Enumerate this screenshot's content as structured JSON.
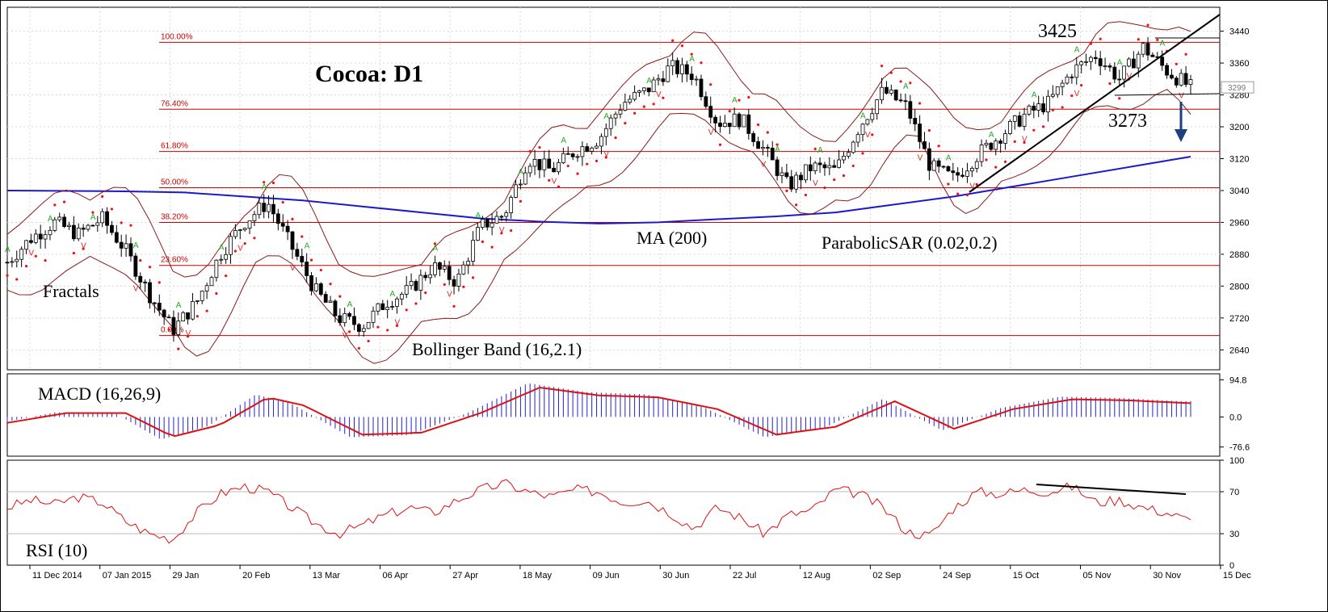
{
  "chart_data": {
    "type": "candlestick",
    "title": "Cocoa: D1",
    "panels": {
      "price": {
        "ylim": [
          2590,
          3500
        ],
        "y_ticks": [
          "3440",
          "3360",
          "3280",
          "3200",
          "3120",
          "3040",
          "2960",
          "2880",
          "2800",
          "2720",
          "2640"
        ],
        "current_price": "3299",
        "fibonacci_levels": [
          {
            "label": "100.00%",
            "value": 3412
          },
          {
            "label": "76.40%",
            "value": 3244
          },
          {
            "label": "61.80%",
            "value": 3138
          },
          {
            "label": "50.00%",
            "value": 3047
          },
          {
            "label": "38.20%",
            "value": 2960
          },
          {
            "label": "23.60%",
            "value": 2852
          },
          {
            "label": "0.00%",
            "value": 2676
          }
        ],
        "annotations": {
          "high_label": "3425",
          "low_label": "3273",
          "ma": "MA (200)",
          "sar": "ParabolicSAR (0.02,0.2)",
          "bollinger": "Bollinger Band (16,2.1)",
          "fractals": "Fractals"
        },
        "ma200": [
          [
            0,
            3040
          ],
          [
            0.1,
            3038
          ],
          [
            0.15,
            3035
          ],
          [
            0.2,
            3025
          ],
          [
            0.25,
            3015
          ],
          [
            0.3,
            3000
          ],
          [
            0.35,
            2985
          ],
          [
            0.4,
            2970
          ],
          [
            0.45,
            2962
          ],
          [
            0.5,
            2957
          ],
          [
            0.55,
            2960
          ],
          [
            0.6,
            2968
          ],
          [
            0.65,
            2975
          ],
          [
            0.7,
            2985
          ],
          [
            0.75,
            3005
          ],
          [
            0.8,
            3025
          ],
          [
            0.85,
            3050
          ],
          [
            0.9,
            3075
          ],
          [
            0.95,
            3100
          ],
          [
            1.0,
            3125
          ]
        ]
      },
      "macd": {
        "label": "MACD (16,26,9)",
        "y_ticks": [
          "94.8",
          "0.0",
          "-76.6"
        ],
        "ylim": [
          -100,
          110
        ]
      },
      "rsi": {
        "label": "RSI (10)",
        "y_ticks": [
          "100",
          "70",
          "30",
          "0"
        ],
        "ylim": [
          0,
          100
        ]
      }
    },
    "x_tick_labels": [
      "11 Dec 2014",
      "07 Jan 2015",
      "29 Jan",
      "20 Feb",
      "13 Mar",
      "06 Apr",
      "27 Apr",
      "18 May",
      "09 Jun",
      "30 Jun",
      "22 Jul",
      "12 Aug",
      "02 Sep",
      "24 Sep",
      "15 Oct",
      "05 Nov",
      "30 Nov",
      "15 Dec"
    ],
    "close_path": [
      [
        0.0,
        2860
      ],
      [
        0.02,
        2920
      ],
      [
        0.04,
        2960
      ],
      [
        0.06,
        2930
      ],
      [
        0.08,
        2970
      ],
      [
        0.1,
        2890
      ],
      [
        0.12,
        2780
      ],
      [
        0.14,
        2690
      ],
      [
        0.16,
        2760
      ],
      [
        0.18,
        2880
      ],
      [
        0.2,
        2960
      ],
      [
        0.22,
        3010
      ],
      [
        0.24,
        2900
      ],
      [
        0.26,
        2790
      ],
      [
        0.28,
        2720
      ],
      [
        0.3,
        2700
      ],
      [
        0.32,
        2760
      ],
      [
        0.34,
        2790
      ],
      [
        0.36,
        2850
      ],
      [
        0.38,
        2810
      ],
      [
        0.4,
        2950
      ],
      [
        0.42,
        2980
      ],
      [
        0.44,
        3120
      ],
      [
        0.46,
        3090
      ],
      [
        0.48,
        3140
      ],
      [
        0.5,
        3170
      ],
      [
        0.52,
        3260
      ],
      [
        0.54,
        3290
      ],
      [
        0.56,
        3350
      ],
      [
        0.58,
        3330
      ],
      [
        0.6,
        3210
      ],
      [
        0.62,
        3220
      ],
      [
        0.64,
        3140
      ],
      [
        0.66,
        3050
      ],
      [
        0.68,
        3100
      ],
      [
        0.7,
        3090
      ],
      [
        0.72,
        3200
      ],
      [
        0.74,
        3290
      ],
      [
        0.76,
        3250
      ],
      [
        0.78,
        3100
      ],
      [
        0.8,
        3070
      ],
      [
        0.82,
        3130
      ],
      [
        0.84,
        3180
      ],
      [
        0.86,
        3230
      ],
      [
        0.88,
        3260
      ],
      [
        0.9,
        3340
      ],
      [
        0.92,
        3380
      ],
      [
        0.94,
        3320
      ],
      [
        0.96,
        3400
      ],
      [
        0.98,
        3340
      ],
      [
        1.0,
        3299
      ]
    ],
    "rsi_path": [
      [
        0.0,
        55
      ],
      [
        0.02,
        62
      ],
      [
        0.04,
        58
      ],
      [
        0.06,
        65
      ],
      [
        0.08,
        60
      ],
      [
        0.1,
        42
      ],
      [
        0.12,
        30
      ],
      [
        0.14,
        25
      ],
      [
        0.16,
        50
      ],
      [
        0.18,
        68
      ],
      [
        0.2,
        75
      ],
      [
        0.22,
        70
      ],
      [
        0.24,
        55
      ],
      [
        0.26,
        40
      ],
      [
        0.28,
        30
      ],
      [
        0.3,
        38
      ],
      [
        0.32,
        48
      ],
      [
        0.34,
        55
      ],
      [
        0.36,
        50
      ],
      [
        0.38,
        62
      ],
      [
        0.4,
        72
      ],
      [
        0.42,
        78
      ],
      [
        0.44,
        70
      ],
      [
        0.46,
        65
      ],
      [
        0.48,
        72
      ],
      [
        0.5,
        70
      ],
      [
        0.52,
        60
      ],
      [
        0.54,
        62
      ],
      [
        0.56,
        50
      ],
      [
        0.58,
        35
      ],
      [
        0.6,
        55
      ],
      [
        0.62,
        45
      ],
      [
        0.64,
        30
      ],
      [
        0.66,
        48
      ],
      [
        0.68,
        52
      ],
      [
        0.7,
        72
      ],
      [
        0.72,
        68
      ],
      [
        0.74,
        55
      ],
      [
        0.76,
        32
      ],
      [
        0.78,
        28
      ],
      [
        0.8,
        55
      ],
      [
        0.82,
        70
      ],
      [
        0.84,
        68
      ],
      [
        0.86,
        72
      ],
      [
        0.88,
        70
      ],
      [
        0.9,
        75
      ],
      [
        0.92,
        60
      ],
      [
        0.94,
        62
      ],
      [
        0.96,
        55
      ],
      [
        0.98,
        50
      ],
      [
        1.0,
        42
      ]
    ],
    "macd_signal_path": [
      [
        0.0,
        -15
      ],
      [
        0.05,
        10
      ],
      [
        0.1,
        10
      ],
      [
        0.14,
        -50
      ],
      [
        0.18,
        -20
      ],
      [
        0.22,
        50
      ],
      [
        0.25,
        30
      ],
      [
        0.3,
        -45
      ],
      [
        0.35,
        -40
      ],
      [
        0.4,
        10
      ],
      [
        0.45,
        75
      ],
      [
        0.5,
        55
      ],
      [
        0.55,
        50
      ],
      [
        0.6,
        20
      ],
      [
        0.65,
        -45
      ],
      [
        0.7,
        -25
      ],
      [
        0.75,
        40
      ],
      [
        0.8,
        -30
      ],
      [
        0.85,
        20
      ],
      [
        0.9,
        45
      ],
      [
        0.95,
        42
      ],
      [
        1.0,
        35
      ]
    ]
  },
  "colors": {
    "axis": "#000000",
    "grid": "#d8d8d8",
    "fib": "#cc0000",
    "ma": "#1a1acc",
    "sar": "#ee1111",
    "bollinger": "#8b1a1a",
    "macd_hist": "#2222cc",
    "macd_signal": "#dd1111",
    "rsi": "#dd1111",
    "fractal_up": "#22aa22",
    "fractal_down": "#dd2222",
    "arrow": "#1f3f7f"
  }
}
